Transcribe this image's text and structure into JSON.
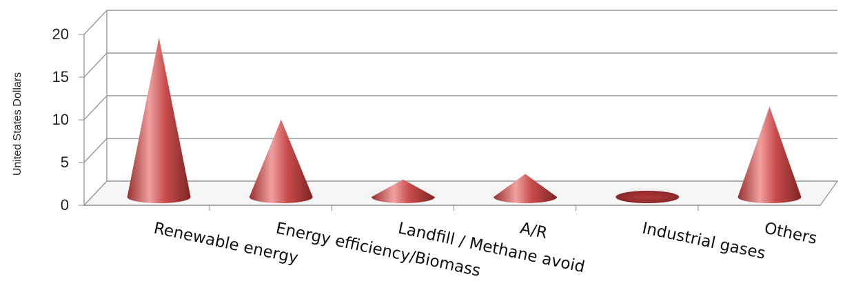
{
  "chart_data": {
    "type": "bar",
    "style": "3d-cone",
    "categories": [
      "Renewable energy",
      "Energy efficiency/Biomass",
      "Landfill / Methane avoid",
      "A/R",
      "Industrial gases",
      "Others"
    ],
    "values": [
      17.3,
      8.4,
      1.9,
      2.5,
      0.1,
      9.8
    ],
    "ylabel": "United States  Dollars",
    "xlabel": "",
    "title": "",
    "ylim": [
      0,
      20
    ],
    "yticks": [
      "0",
      "5",
      "10",
      "15",
      "20"
    ],
    "grid": true,
    "legend": "none",
    "colors": {
      "cone": "#c44a4a",
      "cone_light": "#f3a2a2",
      "cone_dark": "#8e2a2a",
      "grid": "#9a9a9a",
      "floor": "#e6e6e6"
    }
  }
}
